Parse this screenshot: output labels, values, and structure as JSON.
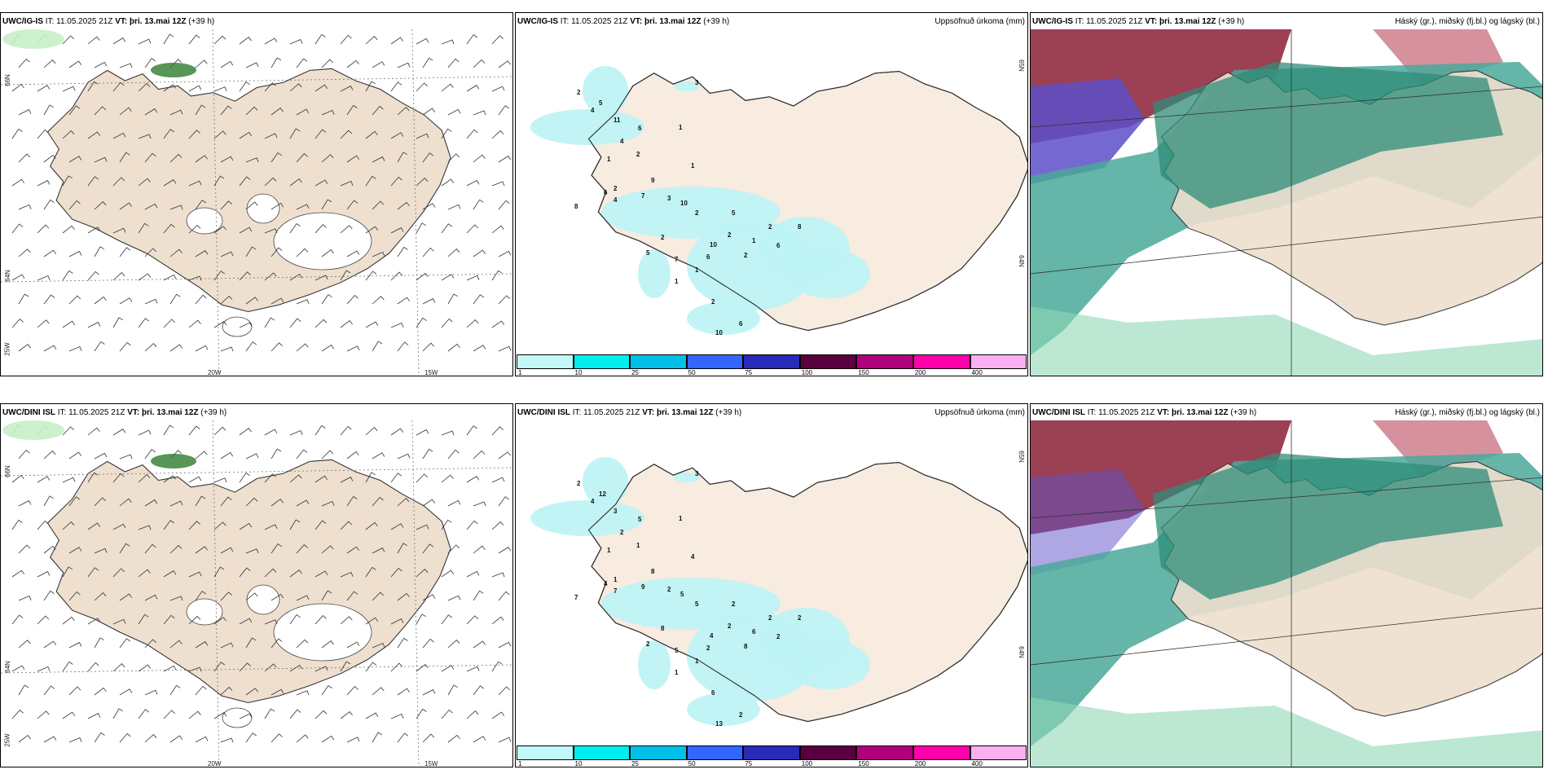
{
  "colors": {
    "land": "#eedfcf",
    "precip_land": "#f8ebe0",
    "precip": "#bff3f5",
    "cloud_high_red": "#8a2035",
    "cloud_high_blue": "#5d4fc9",
    "cloud_mid": "#4aa89a",
    "cloud_low": "#8fd9b5"
  },
  "rows": [
    {
      "model": "UWC/IG-IS",
      "it_label": "IT:",
      "it_value": "11.05.2025 21Z",
      "vt_label": "VT:",
      "vt_value": "þri. 13.mai 12Z",
      "lead": "(+39 h)",
      "precip_title": "Uppsöfnuð úrkoma (mm)",
      "cloud_title": "Háský (gr.), miðský (fj.bl.) og lágský (bl.)",
      "precip_labels": [
        "3",
        "2",
        "4",
        "5",
        "11",
        "6",
        "4",
        "1",
        "1",
        "2",
        "1",
        "2",
        "4",
        "6",
        "7",
        "9",
        "8",
        "3",
        "10",
        "2",
        "2",
        "5",
        "7",
        "10",
        "5",
        "6",
        "2",
        "1",
        "1",
        "2",
        "1",
        "2",
        "6",
        "8",
        "2",
        "6",
        "10"
      ]
    },
    {
      "model": "UWC/DINI ISL",
      "it_label": "IT:",
      "it_value": "11.05.2025 21Z",
      "vt_label": "VT:",
      "vt_value": "þri. 13.mai 12Z",
      "lead": "(+39 h)",
      "precip_title": "Uppsöfnuð úrkoma (mm)",
      "cloud_title": "Háský (gr.), miðský (fj.bl.) og lágský (bl.)",
      "precip_labels": [
        "3",
        "2",
        "4",
        "12",
        "3",
        "5",
        "2",
        "1",
        "1",
        "1",
        "4",
        "1",
        "7",
        "4",
        "9",
        "8",
        "7",
        "2",
        "5",
        "5",
        "8",
        "2",
        "5",
        "4",
        "2",
        "2",
        "2",
        "1",
        "1",
        "2",
        "6",
        "8",
        "2",
        "2",
        "6",
        "2",
        "13"
      ]
    }
  ],
  "grid_labels": {
    "lat_66": "66N",
    "lat_64": "64N",
    "lon_25": "25W",
    "lon_20": "20W",
    "lon_15": "15W",
    "lat_65_right": "65N",
    "lat_64_right": "64N"
  },
  "colorbar": {
    "ticks": [
      "1",
      "10",
      "25",
      "50",
      "75",
      "100",
      "150",
      "200",
      "400"
    ],
    "colors": [
      "#c2f8f8",
      "#00eeee",
      "#00bfe8",
      "#3366ff",
      "#2a2ab8",
      "#5a0040",
      "#b0007a",
      "#ff00aa",
      "#f8b0f0"
    ]
  }
}
